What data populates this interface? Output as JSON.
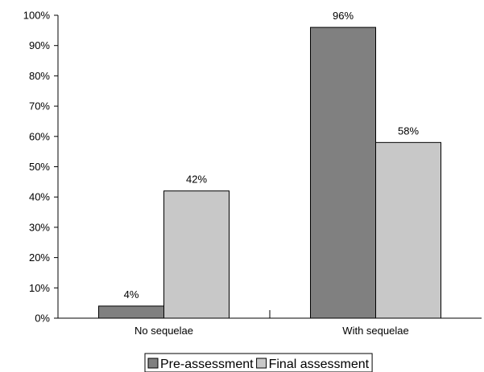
{
  "chart_data": {
    "type": "bar",
    "categories": [
      "No sequelae",
      "With sequelae"
    ],
    "series": [
      {
        "name": "Pre-assessment",
        "values": [
          4,
          96
        ],
        "labels": [
          "4%",
          "96%"
        ],
        "color": "#808080"
      },
      {
        "name": "Final assessment",
        "values": [
          42,
          58
        ],
        "labels": [
          "42%",
          "58%"
        ],
        "color": "#c8c8c8"
      }
    ],
    "yticks": [
      "0%",
      "10%",
      "20%",
      "30%",
      "40%",
      "50%",
      "60%",
      "70%",
      "80%",
      "90%",
      "100%"
    ],
    "ylim": [
      0,
      100
    ],
    "grid": false,
    "legend": "bottom-center"
  }
}
